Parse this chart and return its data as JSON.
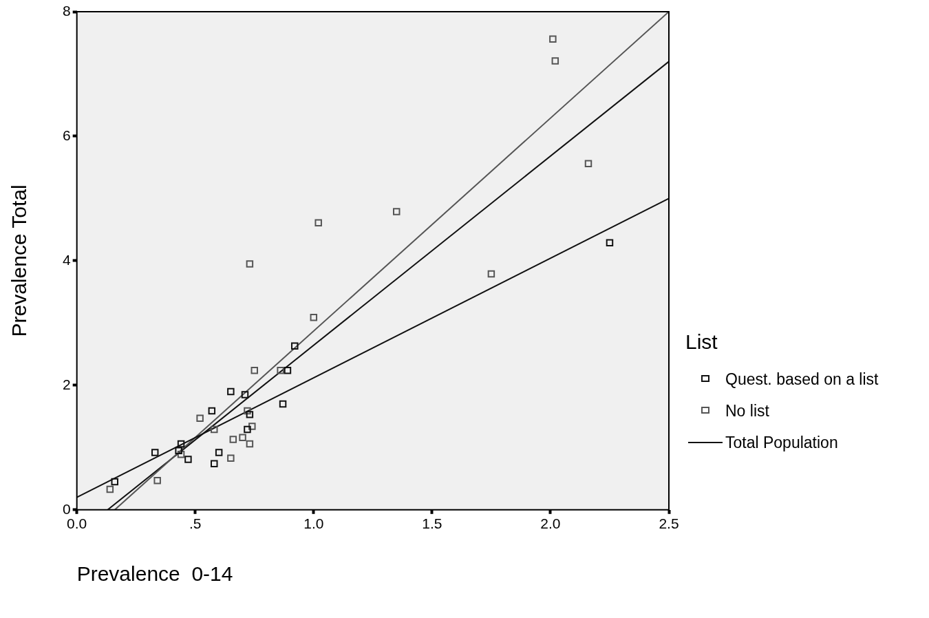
{
  "chart_data": {
    "type": "scatter",
    "xlabel": "Prevalence  0-14",
    "ylabel": "Prevalence Total",
    "legend_title": "List",
    "xlim": [
      0,
      2.5
    ],
    "xticks": [
      {
        "value": 0,
        "label": "0.0"
      },
      {
        "value": 0.5,
        "label": ".5"
      },
      {
        "value": 1,
        "label": "1.0"
      },
      1.5,
      {
        "value": 2,
        "label": "2.0"
      },
      2.5
    ],
    "ylim": [
      0,
      8
    ],
    "yticks": [
      0,
      2,
      4,
      6,
      8
    ],
    "grid": false,
    "legend": "right",
    "marker": "square",
    "series": [
      {
        "name": "Quest. based on a list",
        "color": "#111111",
        "x": [
          0.16,
          0.33,
          0.44,
          0.43,
          0.47,
          0.58,
          0.6,
          0.57,
          0.65,
          0.71,
          0.72,
          0.73,
          0.87,
          0.89,
          0.92,
          2.25
        ],
        "values": [
          0.45,
          0.92,
          1.06,
          0.95,
          0.81,
          0.74,
          0.92,
          1.59,
          1.9,
          1.85,
          1.29,
          1.53,
          1.7,
          2.24,
          2.63,
          4.29
        ]
      },
      {
        "name": "No list",
        "color": "#555555",
        "x": [
          0.14,
          0.34,
          0.44,
          0.52,
          0.58,
          0.65,
          0.66,
          0.7,
          0.72,
          0.73,
          0.74,
          0.75,
          0.86,
          0.73,
          1.0,
          1.02,
          1.35,
          1.75,
          2.01,
          2.02,
          2.16
        ],
        "values": [
          0.33,
          0.47,
          0.89,
          1.47,
          1.29,
          0.83,
          1.13,
          1.16,
          1.59,
          1.06,
          1.34,
          2.24,
          2.24,
          3.95,
          3.09,
          4.61,
          4.79,
          3.79,
          7.56,
          7.21,
          5.56
        ]
      },
      {
        "type": "line",
        "color": "#111111",
        "marker": "none",
        "x": [
          0,
          2.5
        ],
        "values": [
          0.2,
          5.0
        ]
      },
      {
        "type": "line",
        "color": "#555555",
        "marker": "none",
        "x": [
          0.16,
          2.5
        ],
        "values": [
          0,
          8
        ]
      },
      {
        "name": "Total Population",
        "type": "line",
        "color": "#111111",
        "marker": "none",
        "x": [
          0.13,
          2.5
        ],
        "values": [
          0,
          7.2
        ]
      }
    ]
  }
}
